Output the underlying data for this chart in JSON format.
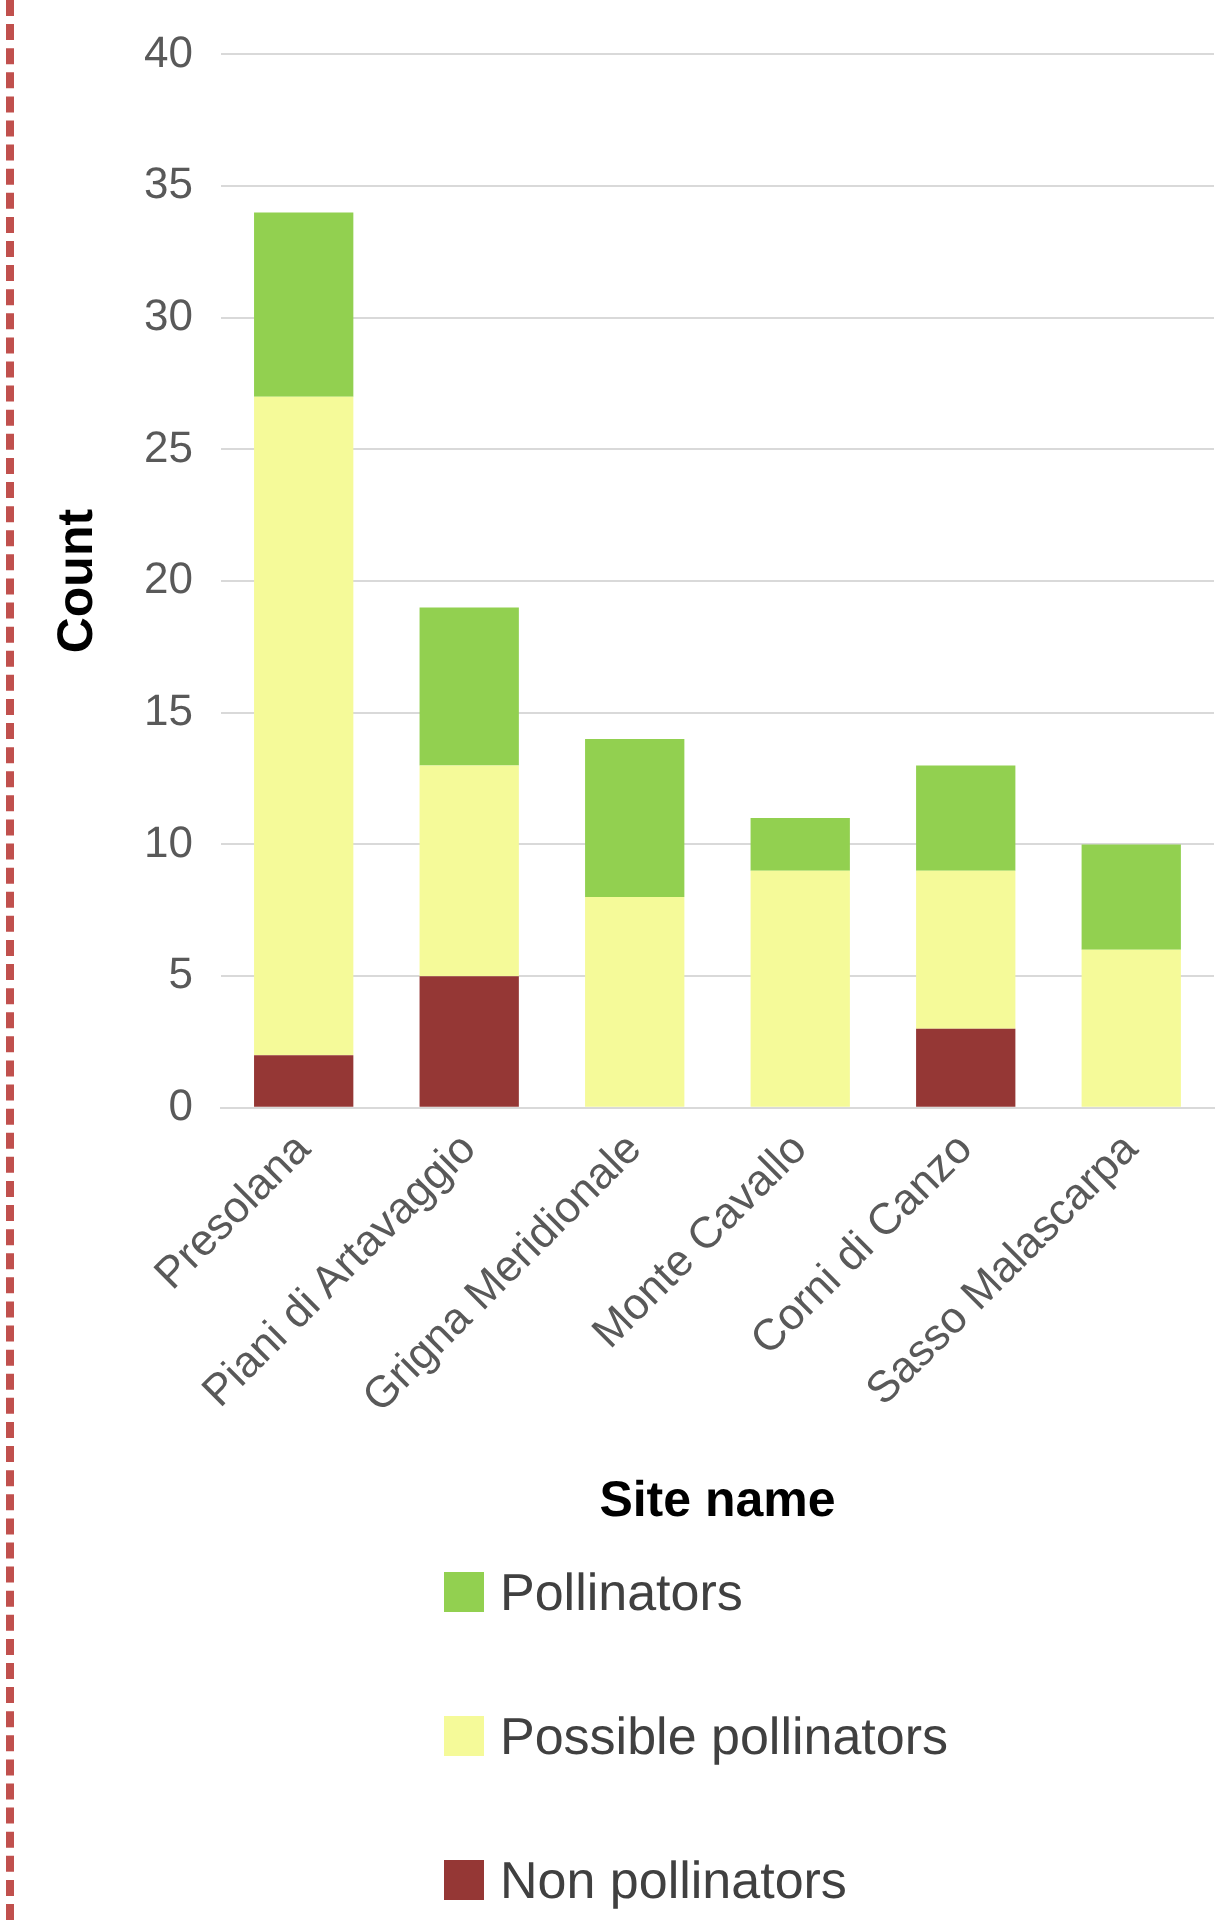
{
  "chart_data": {
    "type": "bar",
    "stacked": true,
    "xlabel": "Site name",
    "ylabel": "Count",
    "categories": [
      "Presolana",
      "Piani di Artavaggio",
      "Grigna Meridionale",
      "Monte Cavallo",
      "Corni di Canzo",
      "Sasso Malascarpa"
    ],
    "series": [
      {
        "name": "Non pollinators",
        "color": "#953735",
        "values": [
          2,
          5,
          0,
          0,
          3,
          0
        ]
      },
      {
        "name": "Possible pollinators",
        "color": "#f5fa99",
        "values": [
          25,
          8,
          8,
          9,
          6,
          6
        ]
      },
      {
        "name": "Pollinators",
        "color": "#92d050",
        "values": [
          7,
          6,
          6,
          2,
          4,
          4
        ]
      }
    ],
    "ylim": [
      0,
      40
    ],
    "yticks": [
      0,
      5,
      10,
      15,
      20,
      25,
      30,
      35,
      40
    ],
    "grid": "y",
    "legend": "bottom"
  }
}
